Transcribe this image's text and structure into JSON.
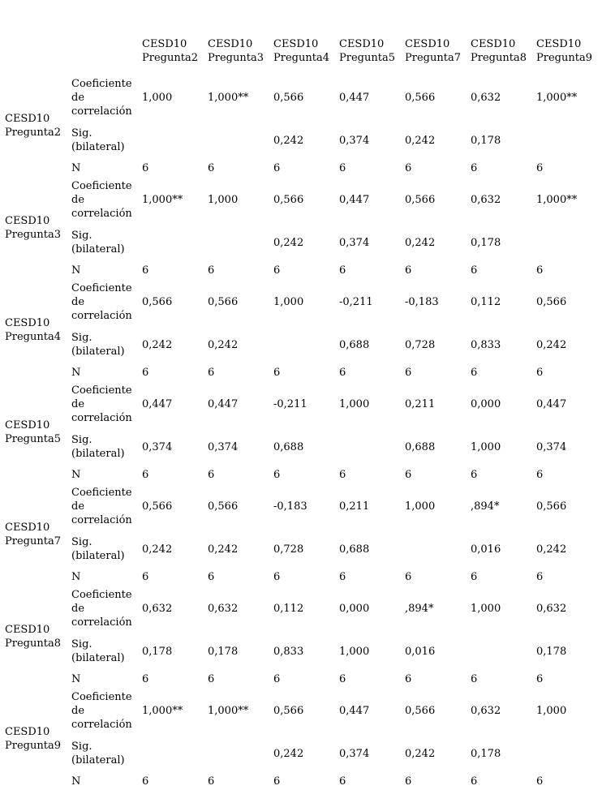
{
  "columns": [
    "CESD10 Pregunta2",
    "CESD10 Pregunta3",
    "CESD10 Pregunta4",
    "CESD10 Pregunta5",
    "CESD10 Pregunta7",
    "CESD10 Pregunta8",
    "CESD10 Pregunta9"
  ],
  "stat_labels": {
    "coef": "Coeficiente de correlación",
    "sig": "Sig. (bilateral)",
    "n": "N"
  },
  "rows": [
    {
      "label": "CESD10 Pregunta2",
      "coef": [
        "1,000",
        "1,000**",
        "0,566",
        "0,447",
        "0,566",
        "0,632",
        "1,000**"
      ],
      "sig": [
        "",
        "",
        "0,242",
        "0,374",
        "0,242",
        "0,178",
        ""
      ],
      "n": [
        "6",
        "6",
        "6",
        "6",
        "6",
        "6",
        "6"
      ]
    },
    {
      "label": "CESD10 Pregunta3",
      "coef": [
        "1,000**",
        "1,000",
        "0,566",
        "0,447",
        "0,566",
        "0,632",
        "1,000**"
      ],
      "sig": [
        "",
        "",
        "0,242",
        "0,374",
        "0,242",
        "0,178",
        ""
      ],
      "n": [
        "6",
        "6",
        "6",
        "6",
        "6",
        "6",
        "6"
      ]
    },
    {
      "label": "CESD10 Pregunta4",
      "coef": [
        "0,566",
        "0,566",
        "1,000",
        "-0,211",
        "-0,183",
        "0,112",
        "0,566"
      ],
      "sig": [
        "0,242",
        "0,242",
        "",
        "0,688",
        "0,728",
        "0,833",
        "0,242"
      ],
      "n": [
        "6",
        "6",
        "6",
        "6",
        "6",
        "6",
        "6"
      ]
    },
    {
      "label": "CESD10 Pregunta5",
      "coef": [
        "0,447",
        "0,447",
        "-0,211",
        "1,000",
        "0,211",
        "0,000",
        "0,447"
      ],
      "sig": [
        "0,374",
        "0,374",
        "0,688",
        "",
        "0,688",
        "1,000",
        "0,374"
      ],
      "n": [
        "6",
        "6",
        "6",
        "6",
        "6",
        "6",
        "6"
      ]
    },
    {
      "label": "CESD10 Pregunta7",
      "coef": [
        "0,566",
        "0,566",
        "-0,183",
        "0,211",
        "1,000",
        ",894*",
        "0,566"
      ],
      "sig": [
        "0,242",
        "0,242",
        "0,728",
        "0,688",
        "",
        "0,016",
        "0,242"
      ],
      "n": [
        "6",
        "6",
        "6",
        "6",
        "6",
        "6",
        "6"
      ]
    },
    {
      "label": "CESD10 Pregunta8",
      "coef": [
        "0,632",
        "0,632",
        "0,112",
        "0,000",
        ",894*",
        "1,000",
        "0,632"
      ],
      "sig": [
        "0,178",
        "0,178",
        "0,833",
        "1,000",
        "0,016",
        "",
        "0,178"
      ],
      "n": [
        "6",
        "6",
        "6",
        "6",
        "6",
        "6",
        "6"
      ]
    },
    {
      "label": "CESD10 Pregunta9",
      "coef": [
        "1,000**",
        "1,000**",
        "0,566",
        "0,447",
        "0,566",
        "0,632",
        "1,000"
      ],
      "sig": [
        "",
        "",
        "0,242",
        "0,374",
        "0,242",
        "0,178",
        ""
      ],
      "n": [
        "6",
        "6",
        "6",
        "6",
        "6",
        "6",
        "6"
      ]
    }
  ]
}
